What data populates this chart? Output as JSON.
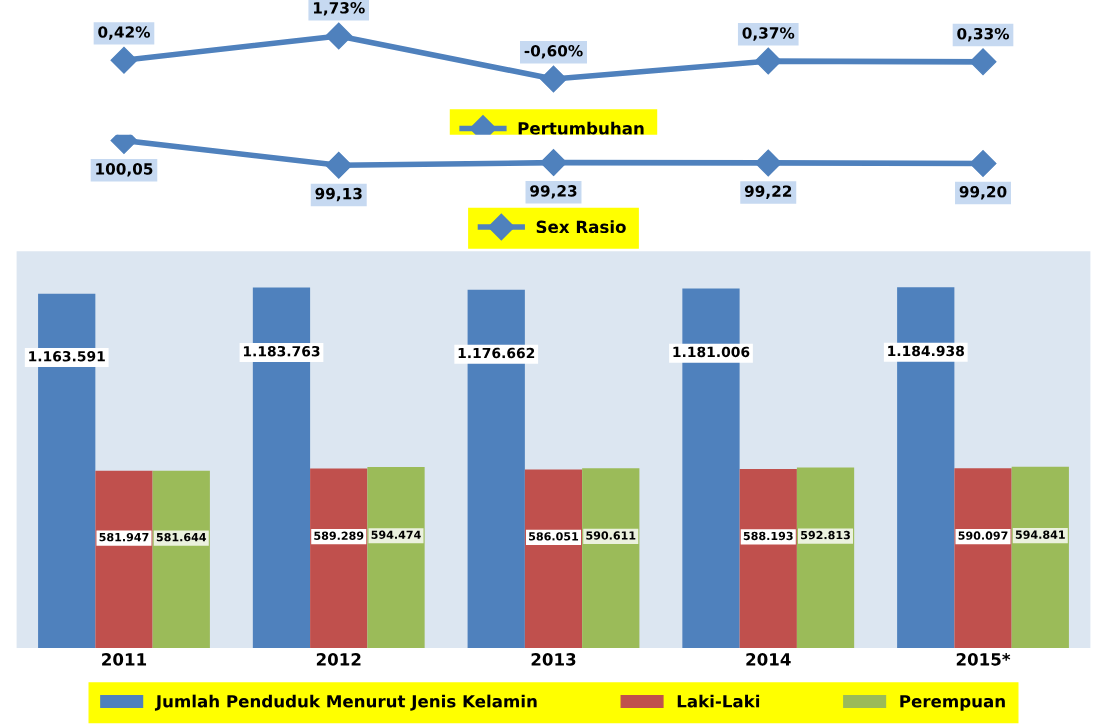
{
  "chart_data": [
    {
      "type": "line",
      "categories": [
        null,
        null,
        null,
        null,
        null
      ],
      "legend": "bottom",
      "marker": "diamond",
      "line_style": "solid",
      "series": [
        {
          "name": "Pertumbuhan",
          "color": "#4f81bd",
          "values": [
            0.42,
            1.73,
            -0.6,
            0.37,
            0.33
          ],
          "value_labels": [
            "0,42%",
            "1,73%",
            "-0,60%",
            "0,37%",
            "0,33%"
          ]
        }
      ]
    },
    {
      "type": "line",
      "categories": [
        null,
        null,
        null,
        null,
        null
      ],
      "legend": "bottom",
      "marker": "diamond",
      "line_style": "solid",
      "series": [
        {
          "name": "Sex Rasio",
          "color": "#4f81bd",
          "values": [
            100.05,
            99.13,
            99.23,
            99.22,
            99.2
          ],
          "value_labels": [
            "100,05",
            "99,13",
            "99,23",
            "99,22",
            "99,20"
          ]
        }
      ]
    },
    {
      "type": "bar",
      "categories": [
        "2011",
        "2012",
        "2013",
        "2014",
        "2015*"
      ],
      "legend": "bottom",
      "series": [
        {
          "name": "Jumlah Penduduk Menurut Jenis Kelamin",
          "color": "#4f81bd",
          "values": [
            1163591,
            1183763,
            1176662,
            1181006,
            1184938
          ],
          "value_labels": [
            "1.163.591",
            "1.183.763",
            "1.176.662",
            "1.181.006",
            "1.184.938"
          ]
        },
        {
          "name": "Laki-Laki",
          "color": "#c0504d",
          "values": [
            581947,
            589289,
            586051,
            588193,
            590097
          ],
          "value_labels": [
            "581.947",
            "589.289",
            "586.051",
            "588.193",
            "590.097"
          ]
        },
        {
          "name": "Perempuan",
          "color": "#9bbb59",
          "values": [
            581644,
            594474,
            590611,
            592813,
            594841
          ],
          "value_labels": [
            "581.644",
            "594.474",
            "590.611",
            "592.813",
            "594.841"
          ]
        }
      ]
    }
  ]
}
